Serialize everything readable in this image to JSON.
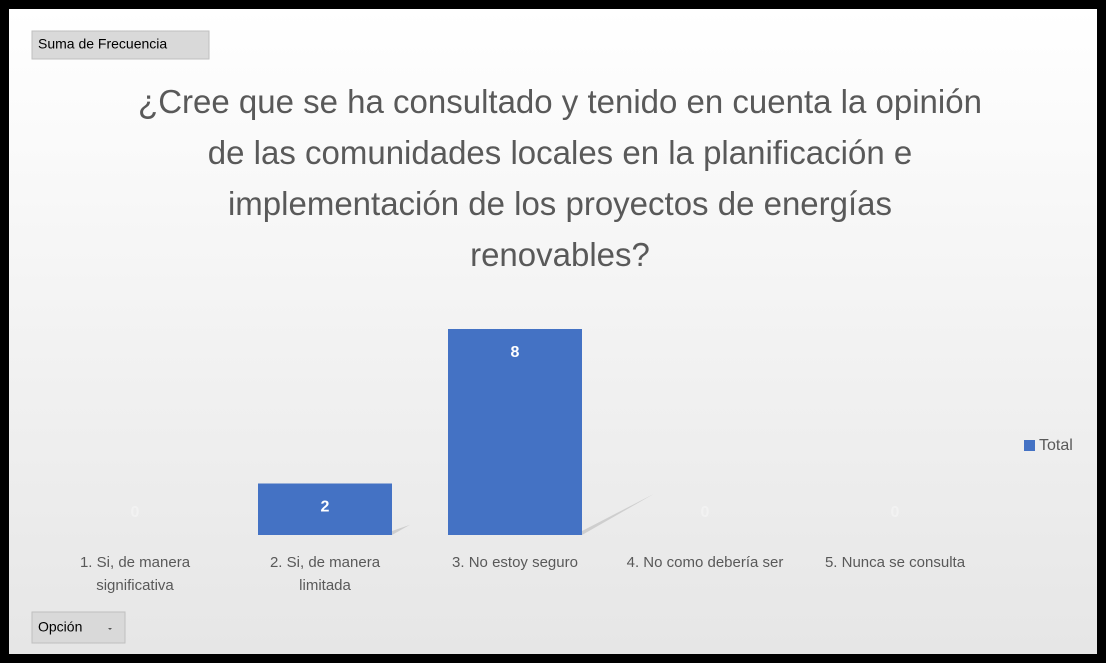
{
  "chart_data": {
    "type": "bar",
    "value_field": "Suma de Frecuencia",
    "axis_field": "Opción",
    "title": "¿Cree que se ha consultado y tenido en cuenta la opinión de las comunidades locales en la planificación e implementación de los proyectos de energías renovables?",
    "categories": [
      "1. Si, de manera significativa",
      "2. Si, de manera limitada",
      "3. No estoy seguro",
      "4. No como debería ser",
      "5. Nunca se consulta"
    ],
    "series": [
      {
        "name": "Total",
        "color": "#4472c4",
        "values": [
          0,
          2,
          8,
          0,
          0
        ]
      }
    ],
    "legend": "right"
  }
}
